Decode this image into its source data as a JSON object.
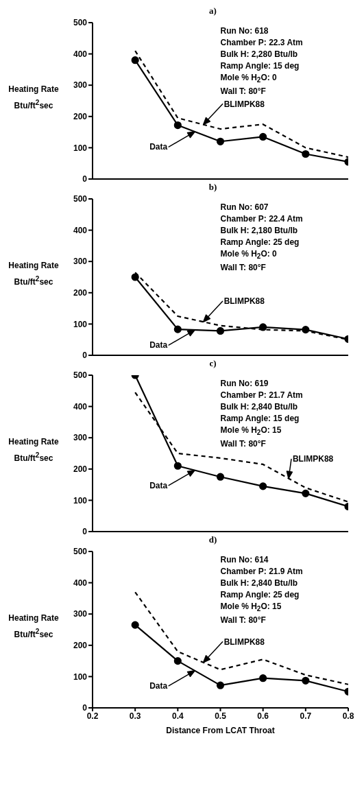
{
  "chart_data": [
    {
      "type": "line",
      "title": "a)",
      "ylabel": "Heating Rate Btu/ft$^{2}$sec",
      "xlim": [
        0.2,
        0.8
      ],
      "xticks": [
        0.2,
        0.3,
        0.4,
        0.5,
        0.6,
        0.7,
        0.8
      ],
      "ylim": [
        0,
        500
      ],
      "yticks": [
        0,
        100,
        200,
        300,
        400,
        500
      ],
      "tick_labels": "y",
      "x": [
        0.3,
        0.4,
        0.5,
        0.6,
        0.7,
        0.8
      ],
      "series": [
        {
          "name": "Data",
          "color": "#000000",
          "marker": "circle",
          "line_style": "solid",
          "values": [
            380,
            172,
            120,
            135,
            80,
            55
          ]
        },
        {
          "name": "BLIMPK88",
          "color": "#000000",
          "marker": "none",
          "line_style": "dashed",
          "values": [
            410,
            195,
            160,
            175,
            100,
            70
          ]
        }
      ],
      "annotations": [
        "Run No: 618",
        "Chamber P: 22.3 Atm",
        "Bulk H: 2,280 Btu/lb",
        "Ramp Angle: 15 deg",
        "Mole % H$_{2}$O: 0",
        "Wall T: 80°F"
      ]
    },
    {
      "type": "line",
      "title": "b)",
      "ylabel": "Heating Rate Btu/ft$^{2}$sec",
      "xlim": [
        0.2,
        0.8
      ],
      "xticks": [
        0.2,
        0.3,
        0.4,
        0.5,
        0.6,
        0.7,
        0.8
      ],
      "ylim": [
        0,
        500
      ],
      "yticks": [
        0,
        100,
        200,
        300,
        400,
        500
      ],
      "tick_labels": "y",
      "x": [
        0.3,
        0.4,
        0.5,
        0.6,
        0.7,
        0.8
      ],
      "series": [
        {
          "name": "Data",
          "color": "#000000",
          "marker": "circle",
          "line_style": "solid",
          "values": [
            250,
            83,
            78,
            90,
            82,
            52
          ]
        },
        {
          "name": "BLIMPK88",
          "color": "#000000",
          "marker": "none",
          "line_style": "dashed",
          "values": [
            265,
            125,
            95,
            82,
            78,
            50
          ]
        }
      ],
      "annotations": [
        "Run No: 607",
        "Chamber P: 22.4 Atm",
        "Bulk H: 2,180 Btu/lb",
        "Ramp Angle: 25 deg",
        "Mole % H$_{2}$O: 0",
        "Wall T: 80°F"
      ]
    },
    {
      "type": "line",
      "title": "c)",
      "ylabel": "Heating Rate Btu/ft$^{2}$sec",
      "xlim": [
        0.2,
        0.8
      ],
      "xticks": [
        0.2,
        0.3,
        0.4,
        0.5,
        0.6,
        0.7,
        0.8
      ],
      "ylim": [
        0,
        500
      ],
      "yticks": [
        0,
        100,
        200,
        300,
        400,
        500
      ],
      "tick_labels": "y",
      "x": [
        0.3,
        0.4,
        0.5,
        0.6,
        0.7,
        0.8
      ],
      "series": [
        {
          "name": "Data",
          "color": "#000000",
          "marker": "circle",
          "line_style": "solid",
          "values": [
            500,
            210,
            175,
            145,
            122,
            80
          ]
        },
        {
          "name": "BLIMPK88",
          "color": "#000000",
          "marker": "none",
          "line_style": "dashed",
          "values": [
            445,
            250,
            235,
            215,
            140,
            95
          ]
        }
      ],
      "annotations": [
        "Run No: 619",
        "Chamber P: 21.7 Atm",
        "Bulk H: 2,840 Btu/lb",
        "Ramp Angle: 15 deg",
        "Mole % H$_{2}$O: 15",
        "Wall T: 80°F"
      ]
    },
    {
      "type": "line",
      "title": "d)",
      "ylabel": "Heating Rate Btu/ft$^{2}$sec",
      "xlabel": "Distance From LCAT Throat",
      "xlim": [
        0.2,
        0.8
      ],
      "xticks": [
        0.2,
        0.3,
        0.4,
        0.5,
        0.6,
        0.7,
        0.8
      ],
      "ylim": [
        0,
        500
      ],
      "yticks": [
        0,
        100,
        200,
        300,
        400,
        500
      ],
      "x": [
        0.3,
        0.4,
        0.5,
        0.6,
        0.7,
        0.8
      ],
      "series": [
        {
          "name": "Data",
          "color": "#000000",
          "marker": "circle",
          "line_style": "solid",
          "values": [
            265,
            150,
            72,
            95,
            87,
            52
          ]
        },
        {
          "name": "BLIMPK88",
          "color": "#000000",
          "marker": "none",
          "line_style": "dashed",
          "values": [
            370,
            180,
            122,
            155,
            105,
            75
          ]
        }
      ],
      "annotations": [
        "Run No: 614",
        "Chamber P: 21.9 Atm",
        "Bulk H: 2,840 Btu/lb",
        "Ramp Angle: 25 deg",
        "Mole % H$_{2}$O: 15",
        "Wall T: 80°F"
      ]
    }
  ]
}
